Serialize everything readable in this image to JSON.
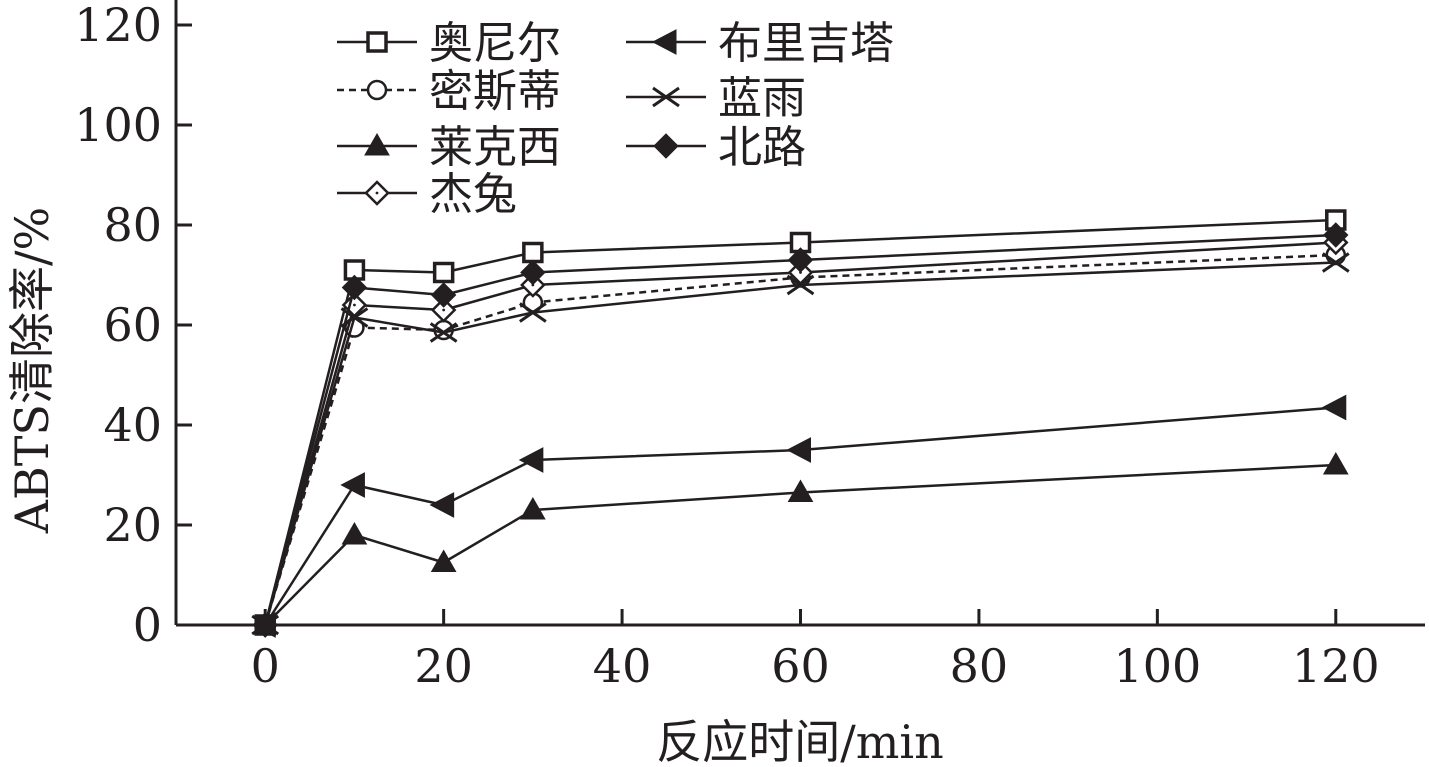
{
  "chart_data": {
    "type": "line",
    "title": "",
    "xlabel": "反应时间/min",
    "ylabel": "ABTS清除率/%",
    "x": [
      0,
      10,
      20,
      30,
      60,
      120
    ],
    "xlim": [
      -10,
      130
    ],
    "ylim": [
      0,
      125
    ],
    "xticks": [
      0,
      20,
      40,
      60,
      80,
      100,
      120
    ],
    "yticks": [
      0,
      20,
      40,
      60,
      80,
      100,
      120
    ],
    "grid": false,
    "legend_position": "top-left",
    "series": [
      {
        "name": "奥尼尔",
        "marker": "square-open",
        "dash": "solid",
        "values": [
          0,
          71,
          70.5,
          74.5,
          76.5,
          81
        ]
      },
      {
        "name": "密斯蒂",
        "marker": "circle-open",
        "dash": "dashed",
        "values": [
          0,
          59.5,
          59,
          64.5,
          69.5,
          74
        ]
      },
      {
        "name": "莱克西",
        "marker": "triangle-up-filled",
        "dash": "solid",
        "values": [
          0,
          18,
          12.5,
          23,
          26.5,
          32
        ]
      },
      {
        "name": "杰兔",
        "marker": "diamond-open",
        "dash": "solid",
        "values": [
          0,
          64,
          63,
          68,
          70.5,
          76.5
        ]
      },
      {
        "name": "布里吉塔",
        "marker": "triangle-left-filled",
        "dash": "solid",
        "values": [
          0,
          28,
          24,
          33,
          35,
          43.5
        ]
      },
      {
        "name": "蓝雨",
        "marker": "x-cross",
        "dash": "solid",
        "values": [
          0,
          61.5,
          58.5,
          62.5,
          68,
          72.5
        ]
      },
      {
        "name": "北路",
        "marker": "diamond-filled",
        "dash": "solid",
        "values": [
          0,
          67.5,
          66,
          70.5,
          73,
          78
        ]
      }
    ],
    "colors": {
      "ink": "#231f20",
      "background": "#ffffff"
    }
  }
}
